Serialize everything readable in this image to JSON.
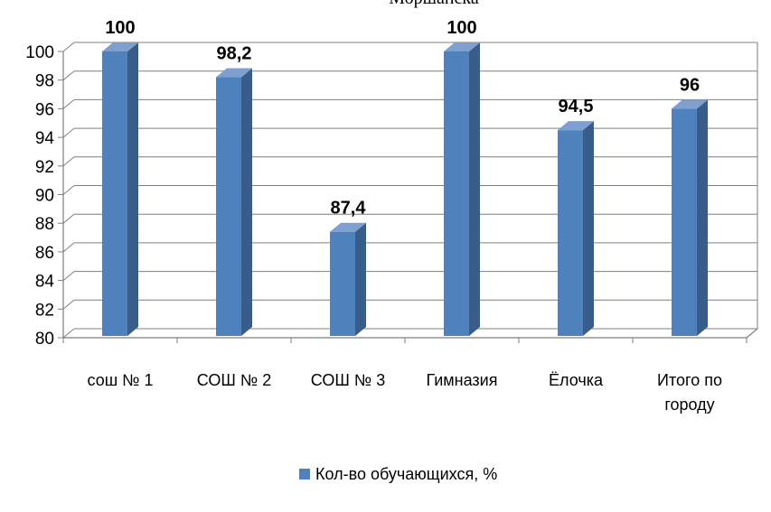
{
  "chart_data": {
    "type": "bar",
    "title": "Моршанска",
    "categories": [
      "сош № 1",
      "СОШ № 2",
      "СОШ № 3",
      "Гимназия",
      "Ёлочка",
      "Итого по городу"
    ],
    "series": [
      {
        "name": "Кол-во обучающихся, %",
        "values": [
          100,
          98.2,
          87.4,
          100,
          94.5,
          96
        ],
        "color": "#4F81BD"
      }
    ],
    "data_labels": [
      "100",
      "98,2",
      "87,4",
      "100",
      "94,5",
      "96"
    ],
    "ylim": [
      80,
      100
    ],
    "yticks": [
      80,
      82,
      84,
      86,
      88,
      90,
      92,
      94,
      96,
      98,
      100
    ],
    "grid": true,
    "three_d": true,
    "legend_position": "bottom"
  }
}
